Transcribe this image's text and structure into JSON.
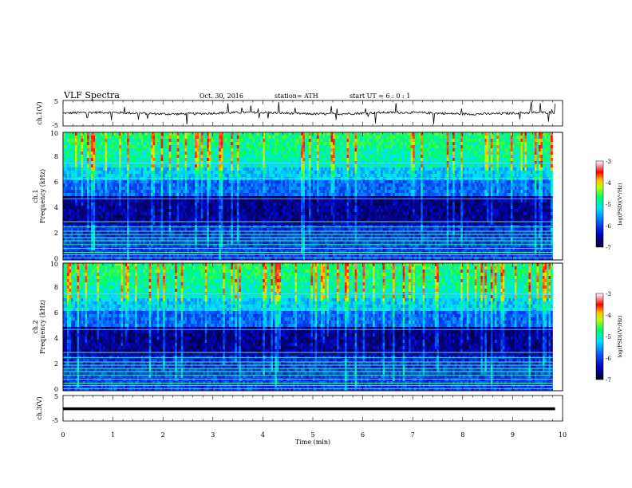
{
  "header": {
    "title": "VLF  Spectra",
    "date": "Oct. 30, 2016",
    "station": "station= ATH",
    "start_ut": "start  UT  =    6  : 0   : 1"
  },
  "chart_data": [
    {
      "type": "line",
      "panel": "ch1-voltage",
      "ylabel": "ch.1(V)",
      "ylim": [
        -5,
        5
      ],
      "yticks": [
        "5",
        "-5"
      ],
      "xlim": [
        0,
        10
      ],
      "baseline_value": 0,
      "color": "#000000"
    },
    {
      "type": "heatmap",
      "panel": "ch1-spectrogram",
      "ylabel_channel": "ch.1",
      "ylabel": "Frequency  (kHz)",
      "ylim": [
        0,
        10
      ],
      "yticks": [
        "0",
        "2",
        "4",
        "6",
        "8",
        "10"
      ],
      "xlim": [
        0,
        9.8
      ],
      "colorbar": {
        "label": "log(PSD)(V²/Hz)",
        "range": [
          -7,
          -3
        ],
        "ticks": [
          "-3",
          "-4",
          "-5",
          "-6",
          "-7"
        ],
        "colors": [
          "#000030",
          "#0000ff",
          "#00c0ff",
          "#00ff80",
          "#ffff00",
          "#ff0000",
          "#ffffff"
        ]
      }
    },
    {
      "type": "heatmap",
      "panel": "ch2-spectrogram",
      "ylabel_channel": "ch.2",
      "ylabel": "Frequency  (kHz)",
      "ylim": [
        0,
        10
      ],
      "yticks": [
        "0",
        "2",
        "4",
        "6",
        "8",
        "10"
      ],
      "xlim": [
        0,
        9.8
      ],
      "colorbar": {
        "label": "log(PSD)(V²/Hz)",
        "range": [
          -7,
          -3
        ],
        "ticks": [
          "-3",
          "-4",
          "-5",
          "-6",
          "-7"
        ]
      }
    },
    {
      "type": "line",
      "panel": "ch3-voltage",
      "ylabel": "ch.3(V)",
      "ylim": [
        -5,
        5
      ],
      "yticks": [
        "5",
        "-5"
      ],
      "xlim": [
        0,
        10
      ],
      "baseline_value": -0.2,
      "color": "#000000"
    }
  ],
  "xaxis": {
    "label": "Time  (min)",
    "ticks": [
      "0",
      "1",
      "2",
      "3",
      "4",
      "5",
      "6",
      "7",
      "8",
      "9",
      "10"
    ]
  }
}
